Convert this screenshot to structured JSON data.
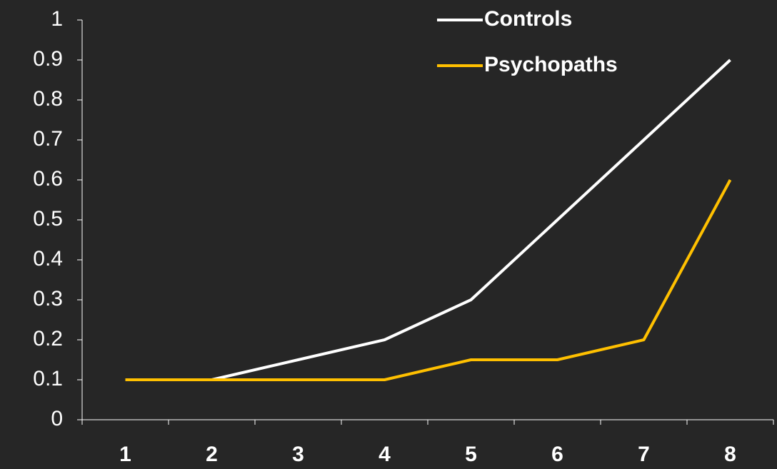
{
  "chart_data": {
    "type": "line",
    "categories": [
      "1",
      "2",
      "3",
      "4",
      "5",
      "6",
      "7",
      "8"
    ],
    "series": [
      {
        "name": "Controls",
        "color": "#ffffff",
        "values": [
          0.1,
          0.1,
          0.15,
          0.2,
          0.3,
          0.5,
          0.7,
          0.9
        ]
      },
      {
        "name": "Psychopaths",
        "color": "#ffc000",
        "values": [
          0.1,
          0.1,
          0.1,
          0.1,
          0.15,
          0.15,
          0.2,
          0.6
        ]
      }
    ],
    "ylim": [
      0,
      1
    ],
    "yticks": [
      0,
      0.1,
      0.2,
      0.3,
      0.4,
      0.5,
      0.6,
      0.7,
      0.8,
      0.9,
      1
    ],
    "legend": "top-right"
  }
}
